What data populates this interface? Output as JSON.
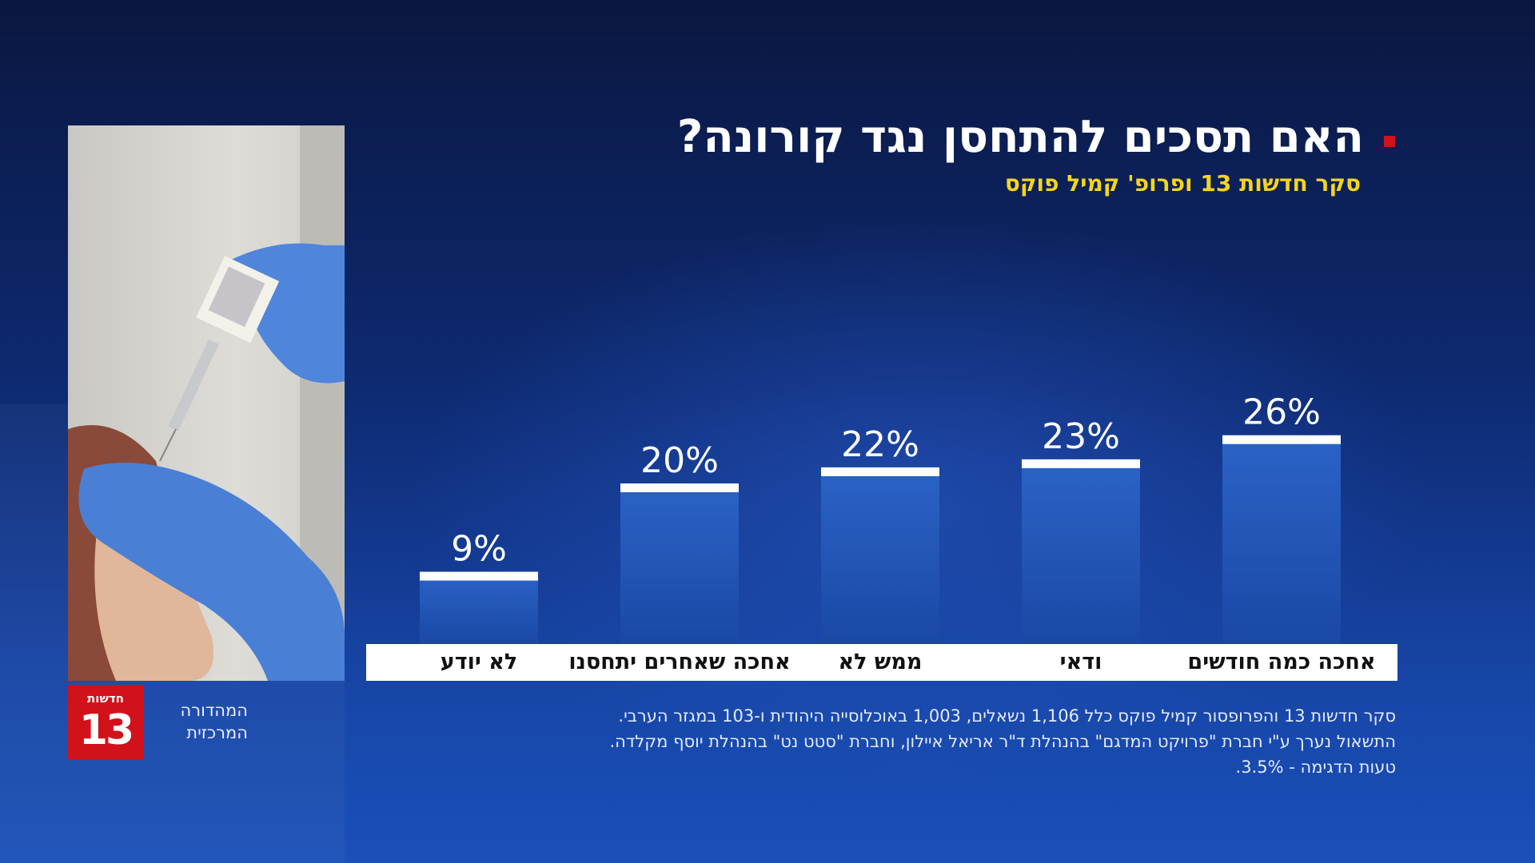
{
  "title": "האם תסכים להתחסן נגד קורונה?",
  "subtitle": "סקר חדשות 13 ופרופ' קמיל פוקס",
  "channel": {
    "logo_name": "חדשות",
    "logo_number": "13",
    "edition_line1": "המהדורה",
    "edition_line2": "המרכזית"
  },
  "footnote": {
    "line1": "סקר חדשות 13 והפרופסור קמיל פוקס כלל 1,106 נשאלים, 1,003 באוכלוסייה היהודית ו-103 במגזר הערבי.",
    "line2": "התשאול נערך ע\"י חברת \"פרויקט המדגם\" בהנהלת ד\"ר אריאל איילון, וחברת \"סטט נט\" בהנהלת יוסף מקלדה.",
    "line3": "טעות הדגימה - 3.5%."
  },
  "colors": {
    "accent_red": "#d1121b",
    "subtitle_yellow": "#f5d51c",
    "bar_top": "#2b63c6",
    "bar_bottom": "#1a48a6"
  },
  "chart_data": {
    "type": "bar",
    "categories": [
      "אחכה כמה חודשים",
      "ודאי",
      "ממש לא",
      "אחכה שאחרים יתחסנו",
      "לא יודע"
    ],
    "values": [
      26,
      23,
      22,
      20,
      9
    ],
    "data_labels": [
      "26%",
      "23%",
      "22%",
      "20%",
      "9%"
    ],
    "unit": "%",
    "ylim": [
      0,
      30
    ],
    "grid": false,
    "legend": "none"
  }
}
